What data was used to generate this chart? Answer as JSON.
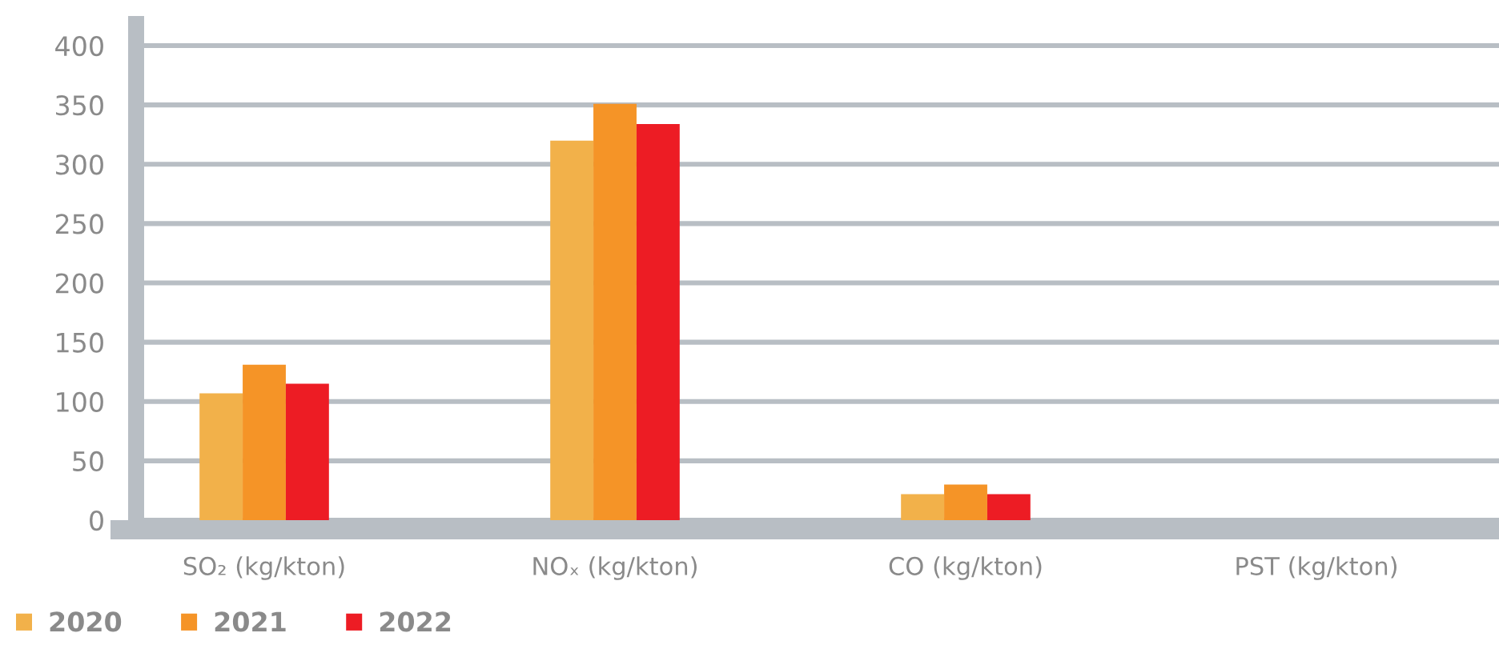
{
  "chart_data": {
    "type": "bar",
    "categories": [
      "SO₂ (kg/kton)",
      "NOₓ (kg/kton)",
      "CO (kg/kton)",
      "PST (kg/kton)"
    ],
    "series": [
      {
        "name": "2020",
        "color": "#f2b14a",
        "values": [
          107,
          320,
          22,
          null
        ]
      },
      {
        "name": "2021",
        "color": "#f59427",
        "values": [
          131,
          351,
          30,
          null
        ]
      },
      {
        "name": "2022",
        "color": "#ed1c24",
        "values": [
          115,
          334,
          22,
          null
        ]
      }
    ],
    "ylim": [
      0,
      425
    ],
    "yticks": [
      0,
      50,
      100,
      150,
      200,
      250,
      300,
      350,
      400
    ],
    "grid": "y",
    "legend": "bottom left"
  }
}
